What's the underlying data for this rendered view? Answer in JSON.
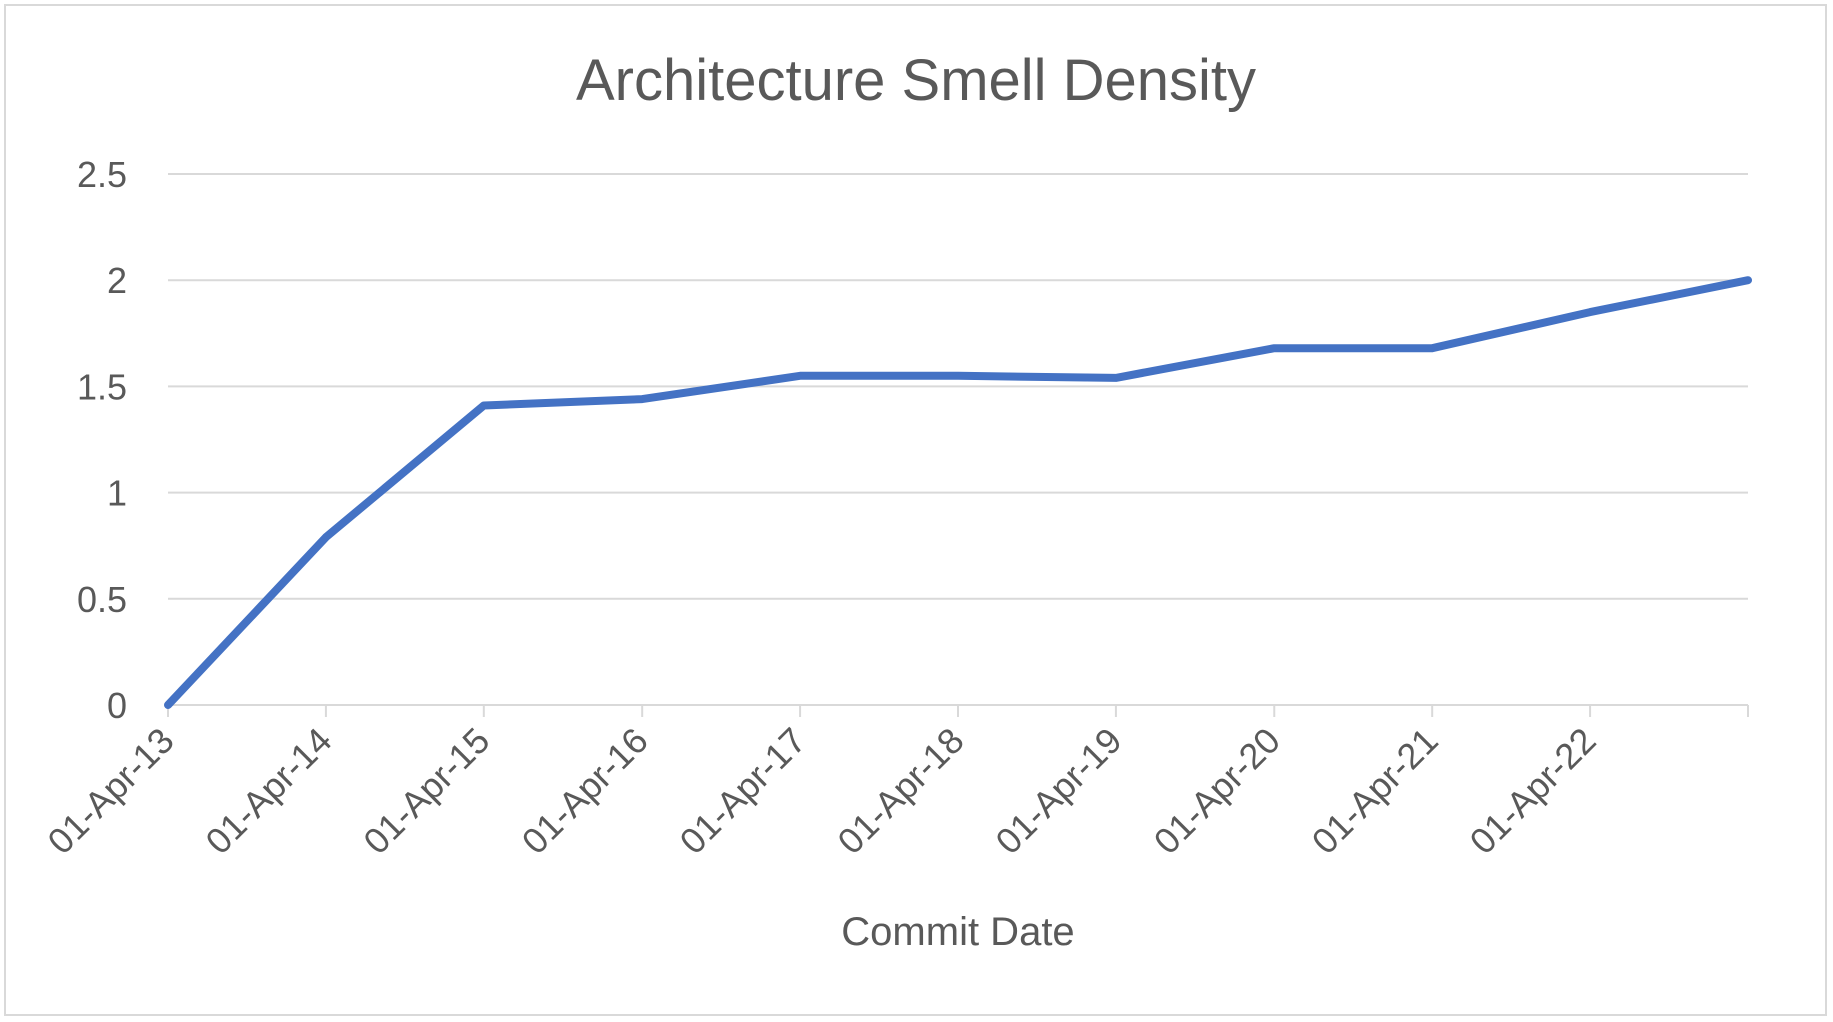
{
  "chart_data": {
    "type": "line",
    "title": "Architecture Smell Density",
    "xlabel": "Commit Date",
    "ylabel": "",
    "x_tick_labels": [
      "01-Apr-13",
      "01-Apr-14",
      "01-Apr-15",
      "01-Apr-16",
      "01-Apr-17",
      "01-Apr-18",
      "01-Apr-19",
      "01-Apr-20",
      "01-Apr-21",
      "01-Apr-22"
    ],
    "y_tick_labels": [
      "0",
      "0.5",
      "1",
      "1.5",
      "2",
      "2.5"
    ],
    "ylim": [
      0,
      2.5
    ],
    "xlim": [
      "01-Apr-13",
      "01-Apr-23"
    ],
    "grid": true,
    "legend": "none",
    "series": [
      {
        "x": [
          "01-Apr-13",
          "01-Apr-14",
          "01-Apr-15",
          "01-Apr-16",
          "01-Apr-17",
          "01-Apr-18",
          "01-Apr-19",
          "01-Apr-20",
          "01-Apr-21",
          "01-Apr-22",
          "01-Apr-23"
        ],
        "values": [
          0,
          0.79,
          1.41,
          1.44,
          1.55,
          1.55,
          1.54,
          1.68,
          1.68,
          1.85,
          2.0
        ]
      }
    ],
    "colors": {
      "series": "#4472c4",
      "text": "#595959",
      "grid": "#d9d9d9"
    }
  }
}
